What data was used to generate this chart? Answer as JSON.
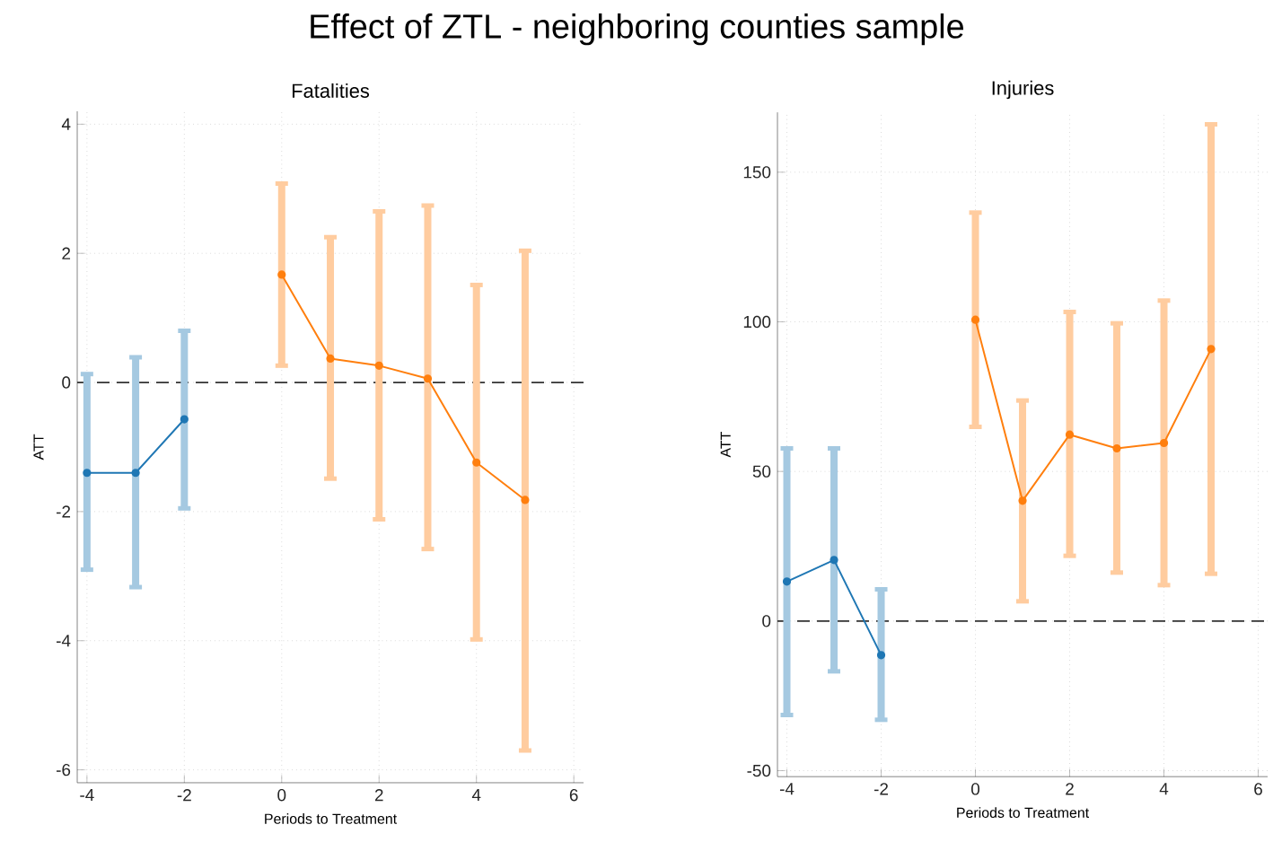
{
  "chart_data": [
    {
      "type": "line",
      "title": "Effect of ZTL - neighboring counties sample",
      "subtitle": "Fatalities",
      "xlabel": "Periods to Treatment",
      "ylabel": "ATT",
      "xlim": [
        -4.2,
        6.2
      ],
      "ylim": [
        -6.2,
        4.2
      ],
      "xticks": [
        -4,
        -2,
        0,
        2,
        4,
        6
      ],
      "yticks": [
        -6,
        -4,
        -2,
        0,
        2,
        4
      ],
      "grid": true,
      "marker": "circle",
      "line_style": "solid",
      "ref_lines": [
        {
          "axis": "y",
          "value": 0,
          "color": "#333333",
          "line_style": "dashed"
        }
      ],
      "series": [
        {
          "color": "#1f77b4",
          "x": [
            -4,
            -3,
            -2
          ],
          "values": [
            -1.4,
            -1.4,
            -0.57
          ],
          "errors": [
            [
              -2.9,
              0.13
            ],
            [
              -3.17,
              0.39
            ],
            [
              -1.95,
              0.8
            ]
          ]
        },
        {
          "color": "#ff7f0e",
          "x": [
            0,
            1,
            2,
            3,
            4,
            5
          ],
          "values": [
            1.67,
            0.37,
            0.26,
            0.06,
            -1.24,
            -1.82
          ],
          "errors": [
            [
              0.26,
              3.08
            ],
            [
              -1.49,
              2.25
            ],
            [
              -2.12,
              2.65
            ],
            [
              -2.58,
              2.74
            ],
            [
              -3.98,
              1.51
            ],
            [
              -5.7,
              2.04
            ]
          ]
        }
      ]
    },
    {
      "type": "line",
      "subtitle": "Injuries",
      "xlabel": "Periods to Treatment",
      "ylabel": "ATT",
      "xlim": [
        -4.2,
        6.2
      ],
      "ylim": [
        -52,
        170
      ],
      "xticks": [
        -4,
        -2,
        0,
        2,
        4,
        6
      ],
      "yticks": [
        -50,
        0,
        50,
        100,
        150
      ],
      "grid": true,
      "marker": "circle",
      "line_style": "solid",
      "ref_lines": [
        {
          "axis": "y",
          "value": 0,
          "color": "#333333",
          "line_style": "dashed"
        }
      ],
      "series": [
        {
          "color": "#1f77b4",
          "x": [
            -4,
            -3,
            -2
          ],
          "values": [
            13.2,
            20.4,
            -11.4
          ],
          "errors": [
            [
              -31.4,
              57.7
            ],
            [
              -16.8,
              57.7
            ],
            [
              -33.0,
              10.6
            ]
          ]
        },
        {
          "color": "#ff7f0e",
          "x": [
            0,
            1,
            2,
            3,
            4,
            5
          ],
          "values": [
            100.7,
            40.2,
            62.3,
            57.7,
            59.5,
            90.9
          ],
          "errors": [
            [
              64.9,
              136.5
            ],
            [
              6.6,
              73.7
            ],
            [
              21.8,
              103.3
            ],
            [
              16.2,
              99.5
            ],
            [
              12.0,
              107.1
            ],
            [
              15.8,
              166.0
            ]
          ]
        }
      ]
    }
  ]
}
